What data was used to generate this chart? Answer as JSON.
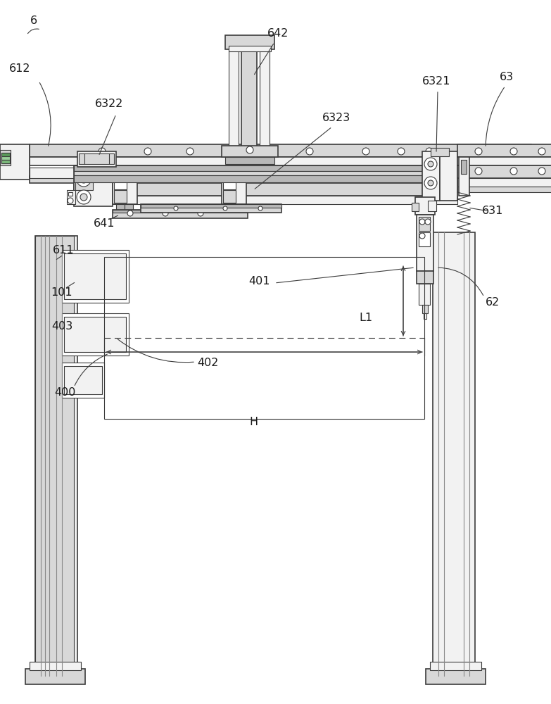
{
  "bg_color": "#ffffff",
  "line_color": "#3c3c3c",
  "label_color": "#1a1a1a",
  "fig_width": 7.83,
  "fig_height": 10.0,
  "dpi": 100,
  "colors": {
    "light": "#f2f2f2",
    "mid": "#d8d8d8",
    "dark": "#b8b8b8",
    "very_dark": "#909090",
    "green": "#7ab87a",
    "white": "#ffffff"
  }
}
